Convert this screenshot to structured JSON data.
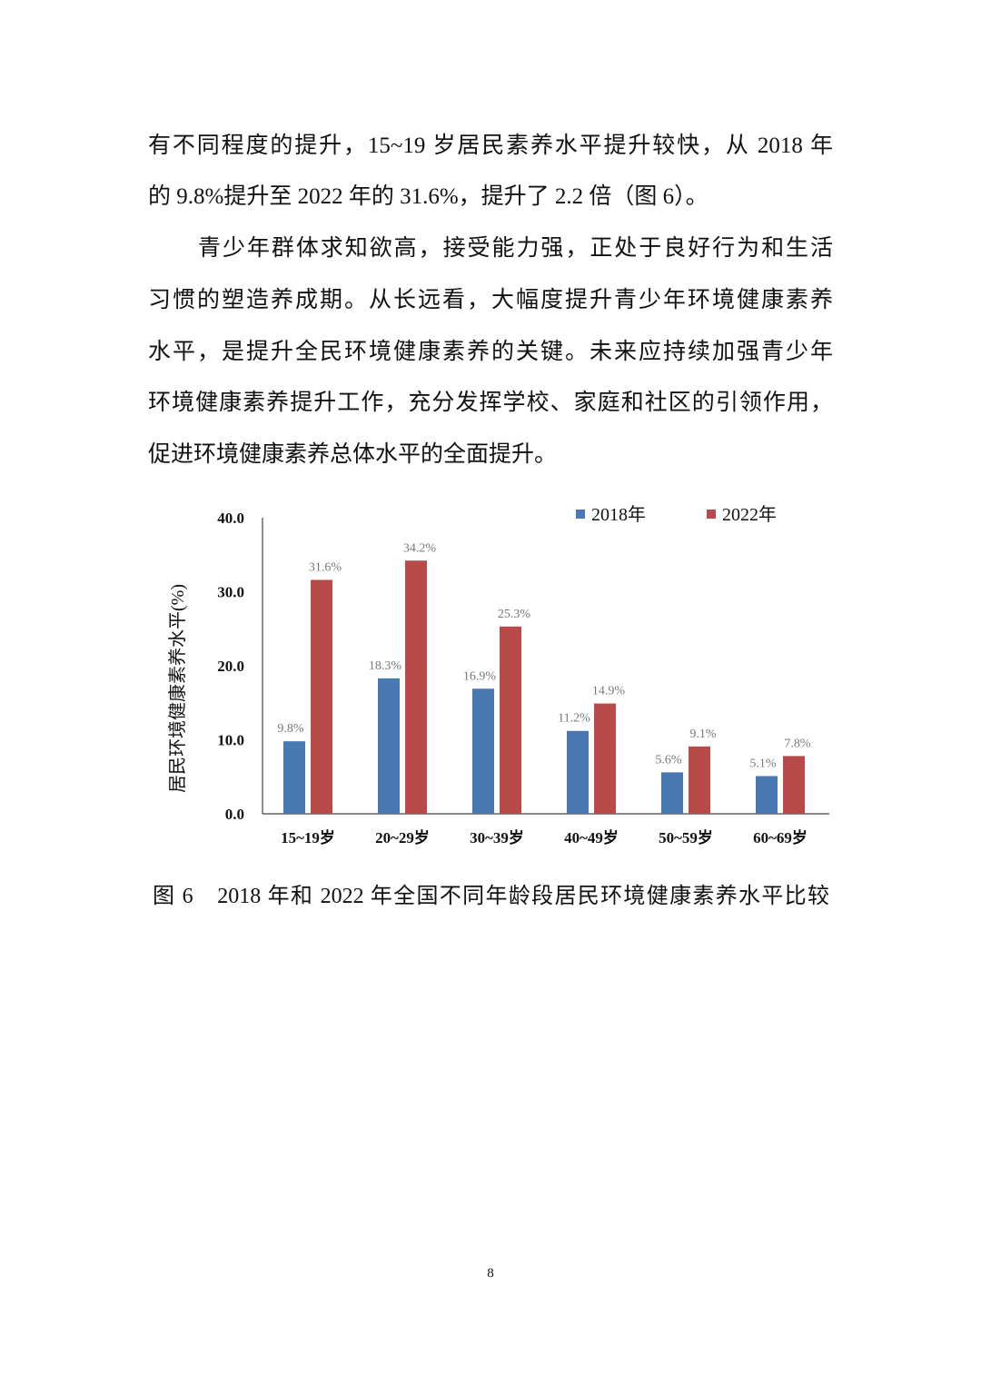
{
  "paragraphs": {
    "lines": [
      "有不同程度的提升，15~19 岁居民素养水平提升较快，从 2018 年",
      "的 9.8%提升至 2022 年的 31.6%，提升了 2.2 倍（图 6）。",
      "青少年群体求知欲高，接受能力强，正处于良好行为和生活",
      "习惯的塑造养成期。从长远看，大幅度提升青少年环境健康素养",
      "水平，是提升全民环境健康素养的关键。未来应持续加强青少年",
      "环境健康素养提升工作，充分发挥学校、家庭和社区的引领作用，",
      "促进环境健康素养总体水平的全面提升。"
    ]
  },
  "chart_data": {
    "type": "bar",
    "title": "",
    "xlabel": "",
    "ylabel": "居民环境健康素养水平(%)",
    "ylim": [
      0,
      40
    ],
    "yticks": [
      "0.0",
      "10.0",
      "20.0",
      "30.0",
      "40.0"
    ],
    "categories": [
      "15~19岁",
      "20~29岁",
      "30~39岁",
      "40~49岁",
      "50~59岁",
      "60~69岁"
    ],
    "series": [
      {
        "name": "2018年",
        "color": "#4a78b2",
        "values": [
          9.8,
          18.3,
          16.9,
          11.2,
          5.6,
          5.1
        ],
        "labels": [
          "9.8%",
          "18.3%",
          "16.9%",
          "11.2%",
          "5.6%",
          "5.1%"
        ]
      },
      {
        "name": "2022年",
        "color": "#b84a4a",
        "values": [
          31.6,
          34.2,
          25.3,
          14.9,
          9.1,
          7.8
        ],
        "labels": [
          "31.6%",
          "34.2%",
          "25.3%",
          "14.9%",
          "9.1%",
          "7.8%"
        ]
      }
    ],
    "legend": "top-right",
    "grid": false
  },
  "caption": "图 6　2018 年和 2022 年全国不同年龄段居民环境健康素养水平比较",
  "page_number": "8"
}
